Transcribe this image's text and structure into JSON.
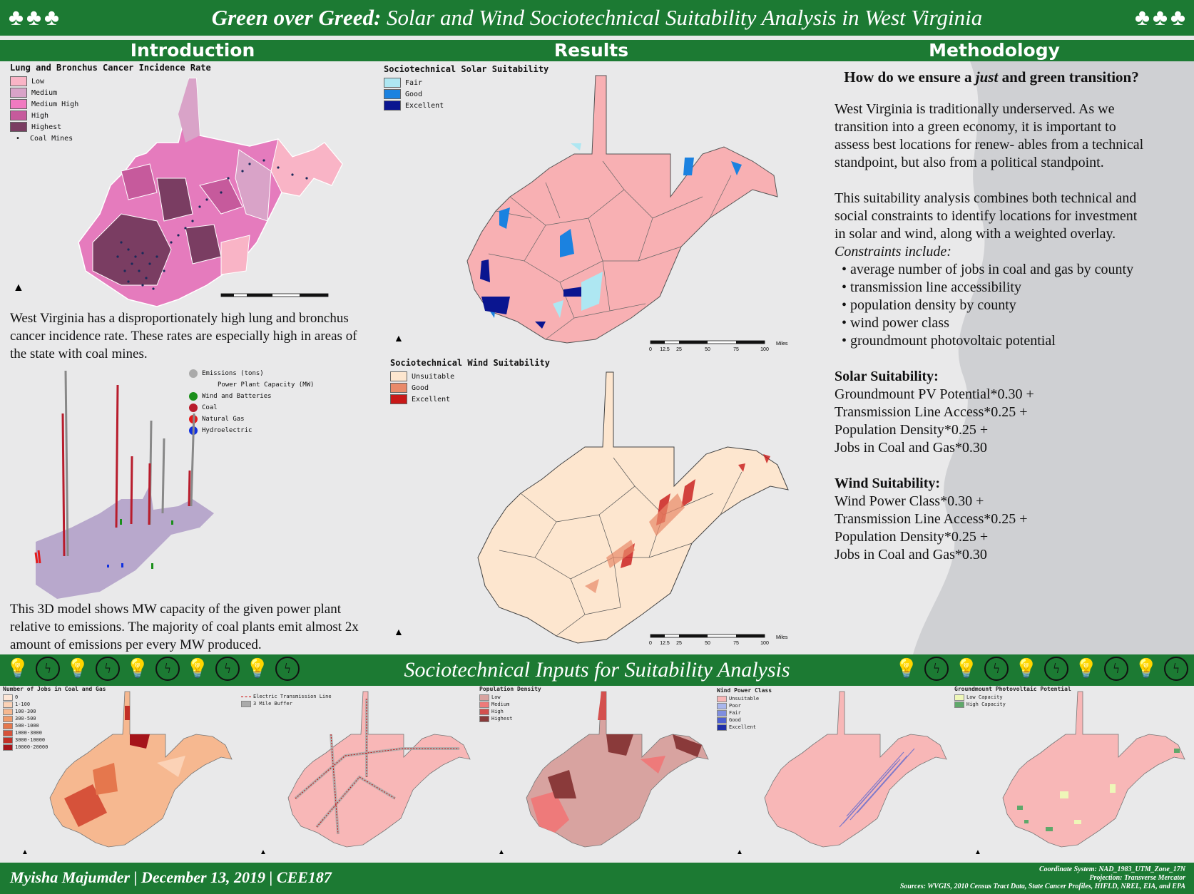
{
  "header": {
    "title_bold": "Green over Greed:",
    "title_rest": " Solar and Wind Sociotechnical Suitability Analysis in West Virginia",
    "icon": "sprout-icon"
  },
  "sections": {
    "introduction": "Introduction",
    "results": "Results",
    "methodology": "Methodology"
  },
  "intro": {
    "cancer_legend": {
      "title": "Lung and Bronchus Cancer Incidence Rate",
      "items": [
        {
          "label": "Low",
          "color": "#f9b4c6"
        },
        {
          "label": "Medium",
          "color": "#d9a3c8"
        },
        {
          "label": "Medium High",
          "color": "#f07ac0"
        },
        {
          "label": "High",
          "color": "#c65a9c"
        },
        {
          "label": "Highest",
          "color": "#7a3d62"
        }
      ],
      "mines_label": "Coal Mines"
    },
    "text1": "West Virginia has a disproportionately high lung and bronchus cancer incidence rate. These rates are especially high in areas of the state with coal mines.",
    "plant_legend": {
      "emissions": "Emissions (tons)",
      "capacity": "Power Plant Capacity (MW)",
      "items": [
        {
          "label": "Wind and Batteries",
          "color": "#1a8f1a"
        },
        {
          "label": "Coal",
          "color": "#b81c2c"
        },
        {
          "label": "Natural Gas",
          "color": "#e31b1b"
        },
        {
          "label": "Hydroelectric",
          "color": "#1030e0"
        }
      ]
    },
    "text2": "This 3D model shows MW capacity of the given power plant relative to emissions. The majority of coal plants emit almost 2x amount of emissions per every MW produced."
  },
  "results": {
    "solar_legend": {
      "title": "Sociotechnical Solar Suitability",
      "items": [
        {
          "label": "Fair",
          "color": "#aee7f2"
        },
        {
          "label": "Good",
          "color": "#1b82e0"
        },
        {
          "label": "Excellent",
          "color": "#0a1590"
        }
      ]
    },
    "wind_legend": {
      "title": "Sociotechnical Wind Suitability",
      "items": [
        {
          "label": "Unsuitable",
          "color": "#fde6cf"
        },
        {
          "label": "Good",
          "color": "#e98a6a"
        },
        {
          "label": "Excellent",
          "color": "#c81818"
        }
      ]
    },
    "scale_ticks": [
      "0",
      "12.5",
      "25",
      "50",
      "75",
      "100"
    ],
    "scale_unit": "Miles"
  },
  "methodology": {
    "heading_a": "How do we ensure a ",
    "heading_em": "just",
    "heading_b": " and green transition?",
    "p1": "West Virginia is traditionally underserved. As we transition into a green economy, it is important to assess best locations for renew- ables from a technical standpoint, but also from a political standpoint.",
    "p2": "This suitability analysis combines both technical and social constraints to identify locations for investment in solar and wind, along with a weighted overlay.",
    "constraints_label": "Constraints include:",
    "constraints": [
      "average number of jobs in coal and gas by county",
      "transmission line accessibility",
      "population density by county",
      "wind power class",
      "groundmount photovoltaic potential"
    ],
    "solar_heading": "Solar Suitability:",
    "solar_formula": [
      "Groundmount PV Potential*0.30 +",
      "Transmission Line Access*0.25 +",
      "Population Density*0.25 +",
      "Jobs in Coal and Gas*0.30"
    ],
    "wind_heading": "Wind Suitability:",
    "wind_formula": [
      "Wind Power Class*0.30 +",
      "Transmission Line Access*0.25 +",
      "Population Density*0.25 +",
      "Jobs in Coal and Gas*0.30"
    ]
  },
  "inputs": {
    "title": "Sociotechnical Inputs for Suitability Analysis",
    "jobs_legend": {
      "title": "Number of Jobs in Coal and Gas",
      "items": [
        {
          "label": "0",
          "color": "#fde6d6"
        },
        {
          "label": "1-100",
          "color": "#fbd2b6"
        },
        {
          "label": "100-300",
          "color": "#f6b890"
        },
        {
          "label": "300-500",
          "color": "#ef9a6b"
        },
        {
          "label": "500-1000",
          "color": "#e5774d"
        },
        {
          "label": "1000-3000",
          "color": "#d6523a"
        },
        {
          "label": "3000-10000",
          "color": "#c22f26"
        },
        {
          "label": "10000-20000",
          "color": "#a5141a"
        }
      ]
    },
    "trans_legend": {
      "line": "Electric Transmission Line",
      "buffer": "3 Mile Buffer"
    },
    "pop_legend": {
      "title": "Population Density",
      "items": [
        {
          "label": "Low",
          "color": "#d8a3a0"
        },
        {
          "label": "Medium",
          "color": "#ee7a7a"
        },
        {
          "label": "High",
          "color": "#d4504e"
        },
        {
          "label": "Highest",
          "color": "#8a3a3a"
        }
      ]
    },
    "wind_class_legend": {
      "title": "Wind Power Class",
      "items": [
        {
          "label": "Unsuitable",
          "color": "#f8b7b7"
        },
        {
          "label": "Poor",
          "color": "#a9b6ec"
        },
        {
          "label": "Fair",
          "color": "#7f8ee0"
        },
        {
          "label": "Good",
          "color": "#4d5fd2"
        },
        {
          "label": "Excellent",
          "color": "#1f2fa8"
        }
      ]
    },
    "pv_legend": {
      "title": "Groundmount Photovoltaic Potential",
      "items": [
        {
          "label": "Low Capacity",
          "color": "#eef7b8"
        },
        {
          "label": "High Capacity",
          "color": "#5fa86a"
        }
      ]
    }
  },
  "footer": {
    "left": "Myisha Majumder | December 13, 2019 | CEE187",
    "coord": "Coordinate System: NAD_1983_UTM_Zone_17N",
    "proj": "Projection: Transverse Mercator",
    "sources": "Sources: WVGIS, 2010 Census Tract Data, State Cancer Profiles, HIFLD, NREL, EIA, and EPA"
  }
}
